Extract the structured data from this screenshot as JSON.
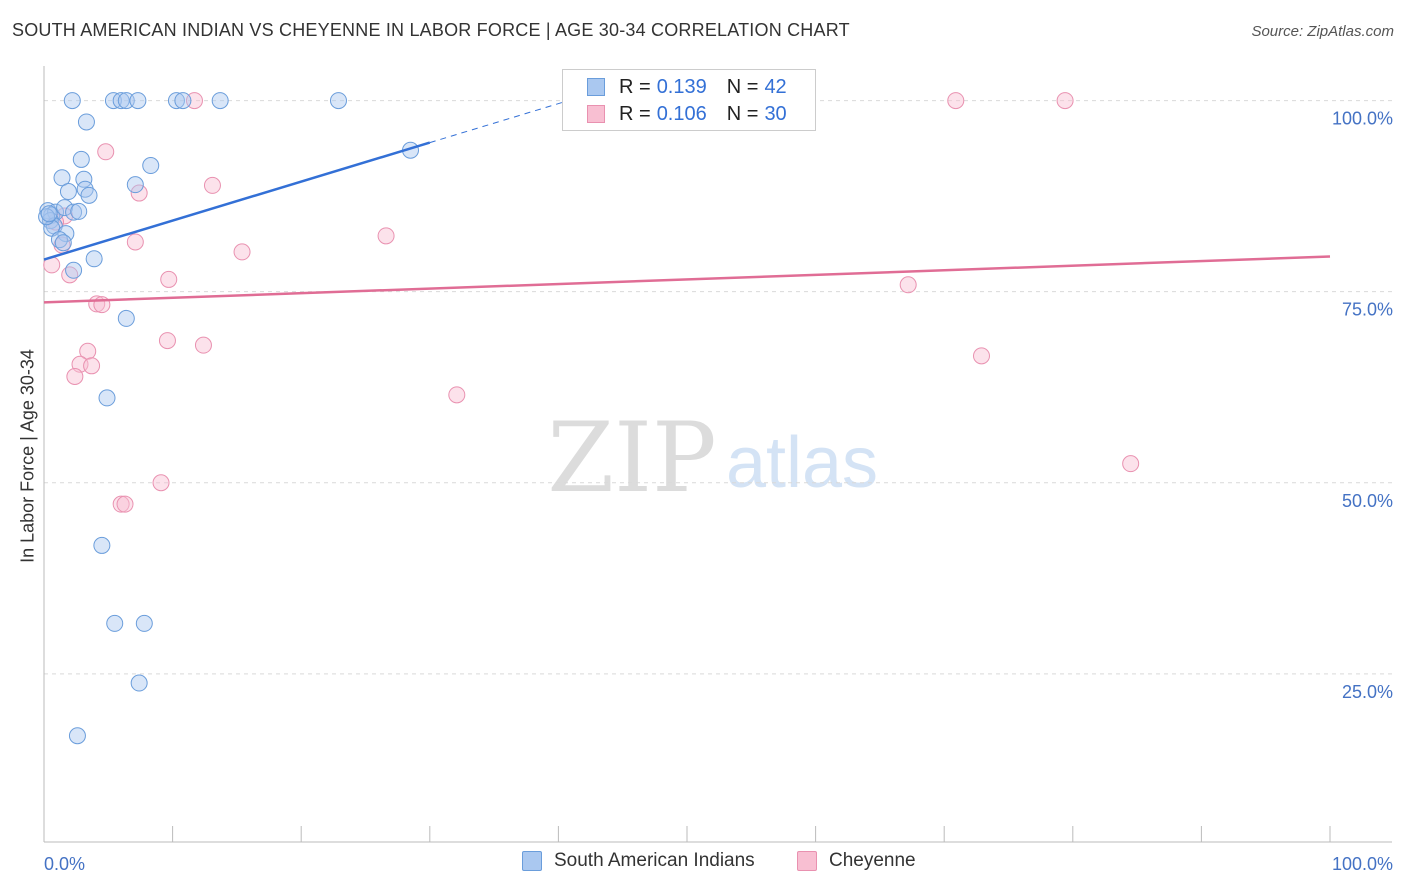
{
  "title": "SOUTH AMERICAN INDIAN VS CHEYENNE IN LABOR FORCE | AGE 30-34 CORRELATION CHART",
  "source": "Source: ZipAtlas.com",
  "watermark": {
    "zip": "ZIP",
    "atlas": "atlas"
  },
  "colors": {
    "blue_fill": "#aac8f0",
    "blue_stroke": "#6a9ddb",
    "blue_line": "#3370d6",
    "pink_fill": "#f8bfd2",
    "pink_stroke": "#e991b0",
    "pink_line": "#e06d95",
    "tick_text": "#4472c4",
    "grid": "#d9d9d9"
  },
  "legend_top": {
    "rows": [
      {
        "r_label": "R =",
        "r_value": "0.139",
        "n_label": "N =",
        "n_value": "42"
      },
      {
        "r_label": "R =",
        "r_value": "0.106",
        "n_label": "N =",
        "n_value": "30"
      }
    ]
  },
  "legend_bottom": {
    "items": [
      {
        "label": "South American Indians"
      },
      {
        "label": "Cheyenne"
      }
    ]
  },
  "chart_data": {
    "type": "scatter",
    "title": "SOUTH AMERICAN INDIAN VS CHEYENNE IN LABOR FORCE | AGE 30-34 CORRELATION CHART",
    "xlabel": "",
    "ylabel": "In Labor Force | Age 30-34",
    "xlim": [
      0,
      100
    ],
    "ylim": [
      3,
      104
    ],
    "x_tick_labels": [
      "0.0%",
      "100.0%"
    ],
    "y_ticks": [
      25,
      50,
      75,
      100
    ],
    "y_tick_labels": [
      "25.0%",
      "50.0%",
      "75.0%",
      "100.0%"
    ],
    "grid": true,
    "legend_position": "top-center",
    "series": [
      {
        "name": "South American Indians",
        "r": 0.139,
        "n": 42,
        "trend": {
          "x0": 0,
          "y0": 79.2,
          "x1": 30,
          "y1": 94.5,
          "dash_to_x": 40.5
        },
        "points": [
          [
            2.2,
            100
          ],
          [
            5.4,
            100
          ],
          [
            6.0,
            100
          ],
          [
            6.4,
            100
          ],
          [
            7.3,
            100
          ],
          [
            10.3,
            100
          ],
          [
            10.8,
            100
          ],
          [
            13.7,
            100
          ],
          [
            22.9,
            100
          ],
          [
            3.3,
            97.2
          ],
          [
            28.5,
            93.5
          ],
          [
            2.9,
            92.3
          ],
          [
            8.3,
            91.5
          ],
          [
            1.4,
            89.9
          ],
          [
            3.1,
            89.7
          ],
          [
            7.1,
            89.0
          ],
          [
            1.9,
            88.1
          ],
          [
            3.2,
            88.4
          ],
          [
            3.5,
            87.6
          ],
          [
            0.3,
            85.6
          ],
          [
            0.6,
            85.0
          ],
          [
            0.9,
            85.4
          ],
          [
            1.6,
            86.0
          ],
          [
            2.3,
            85.4
          ],
          [
            2.7,
            85.5
          ],
          [
            0.5,
            84.3
          ],
          [
            0.8,
            83.6
          ],
          [
            0.6,
            83.3
          ],
          [
            1.7,
            82.6
          ],
          [
            1.2,
            81.8
          ],
          [
            1.5,
            81.4
          ],
          [
            3.9,
            79.3
          ],
          [
            2.3,
            77.8
          ],
          [
            6.4,
            71.5
          ],
          [
            4.9,
            61.1
          ],
          [
            4.5,
            41.8
          ],
          [
            5.5,
            31.6
          ],
          [
            7.8,
            31.6
          ],
          [
            7.4,
            23.8
          ],
          [
            2.6,
            16.9
          ],
          [
            0.2,
            84.8
          ],
          [
            0.4,
            85.2
          ]
        ]
      },
      {
        "name": "Cheyenne",
        "r": 0.106,
        "n": 30,
        "trend": {
          "x0": 0,
          "y0": 73.6,
          "x1": 100,
          "y1": 79.6
        },
        "points": [
          [
            11.7,
            100
          ],
          [
            70.9,
            100
          ],
          [
            79.4,
            100
          ],
          [
            4.8,
            93.3
          ],
          [
            13.1,
            88.9
          ],
          [
            7.4,
            87.9
          ],
          [
            1.6,
            84.9
          ],
          [
            26.6,
            82.3
          ],
          [
            7.1,
            81.5
          ],
          [
            1.4,
            81.1
          ],
          [
            15.4,
            80.2
          ],
          [
            0.6,
            78.5
          ],
          [
            2.0,
            77.2
          ],
          [
            9.7,
            76.6
          ],
          [
            67.2,
            75.9
          ],
          [
            4.1,
            73.4
          ],
          [
            4.5,
            73.3
          ],
          [
            9.6,
            68.6
          ],
          [
            12.4,
            68.0
          ],
          [
            3.4,
            67.2
          ],
          [
            72.9,
            66.6
          ],
          [
            2.8,
            65.5
          ],
          [
            3.7,
            65.3
          ],
          [
            2.4,
            63.9
          ],
          [
            32.1,
            61.5
          ],
          [
            84.5,
            52.5
          ],
          [
            9.1,
            50.0
          ],
          [
            6.0,
            47.2
          ],
          [
            6.3,
            47.2
          ],
          [
            0.9,
            84.1
          ]
        ]
      }
    ]
  }
}
